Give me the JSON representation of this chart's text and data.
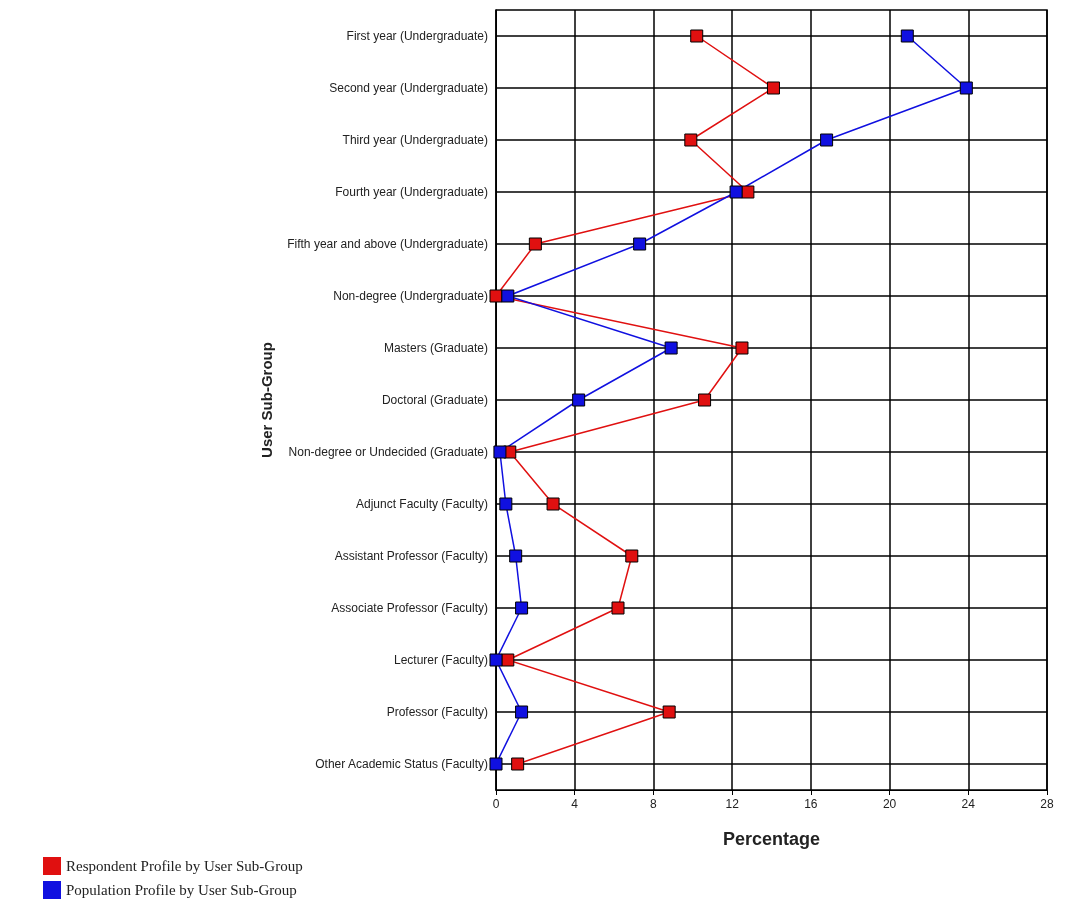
{
  "chart_data": {
    "type": "line",
    "orientation": "horizontal",
    "xlabel": "Percentage",
    "ylabel": "User Sub-Group",
    "categories": [
      "First year (Undergraduate)",
      "Second year (Undergraduate)",
      "Third year (Undergraduate)",
      "Fourth year (Undergraduate)",
      "Fifth year and above (Undergraduate)",
      "Non-degree (Undergraduate)",
      "Masters (Graduate)",
      "Doctoral (Graduate)",
      "Non-degree or Undecided (Graduate)",
      "Adjunct Faculty (Faculty)",
      "Assistant Professor (Faculty)",
      "Associate Professor (Faculty)",
      "Lecturer (Faculty)",
      "Professor (Faculty)",
      "Other Academic Status (Faculty)"
    ],
    "series": [
      {
        "name": "Respondent Profile by User Sub-Group",
        "color": "#e01010",
        "values": [
          10.2,
          14.1,
          9.9,
          12.8,
          2.0,
          0,
          12.5,
          10.6,
          0.7,
          2.9,
          6.9,
          6.2,
          0.6,
          8.8,
          1.1
        ]
      },
      {
        "name": "Population Profile by User Sub-Group",
        "color": "#1010e0",
        "values": [
          20.9,
          23.9,
          16.8,
          12.2,
          7.3,
          0.6,
          8.9,
          4.2,
          0.2,
          0.5,
          1.0,
          1.3,
          0,
          1.3,
          0
        ]
      }
    ],
    "xlim": [
      0,
      28
    ],
    "xticks": [
      0,
      4,
      8,
      12,
      16,
      20,
      24,
      28
    ],
    "grid": true,
    "legend": "bottom left",
    "marker": "square",
    "line_style": "solid"
  }
}
